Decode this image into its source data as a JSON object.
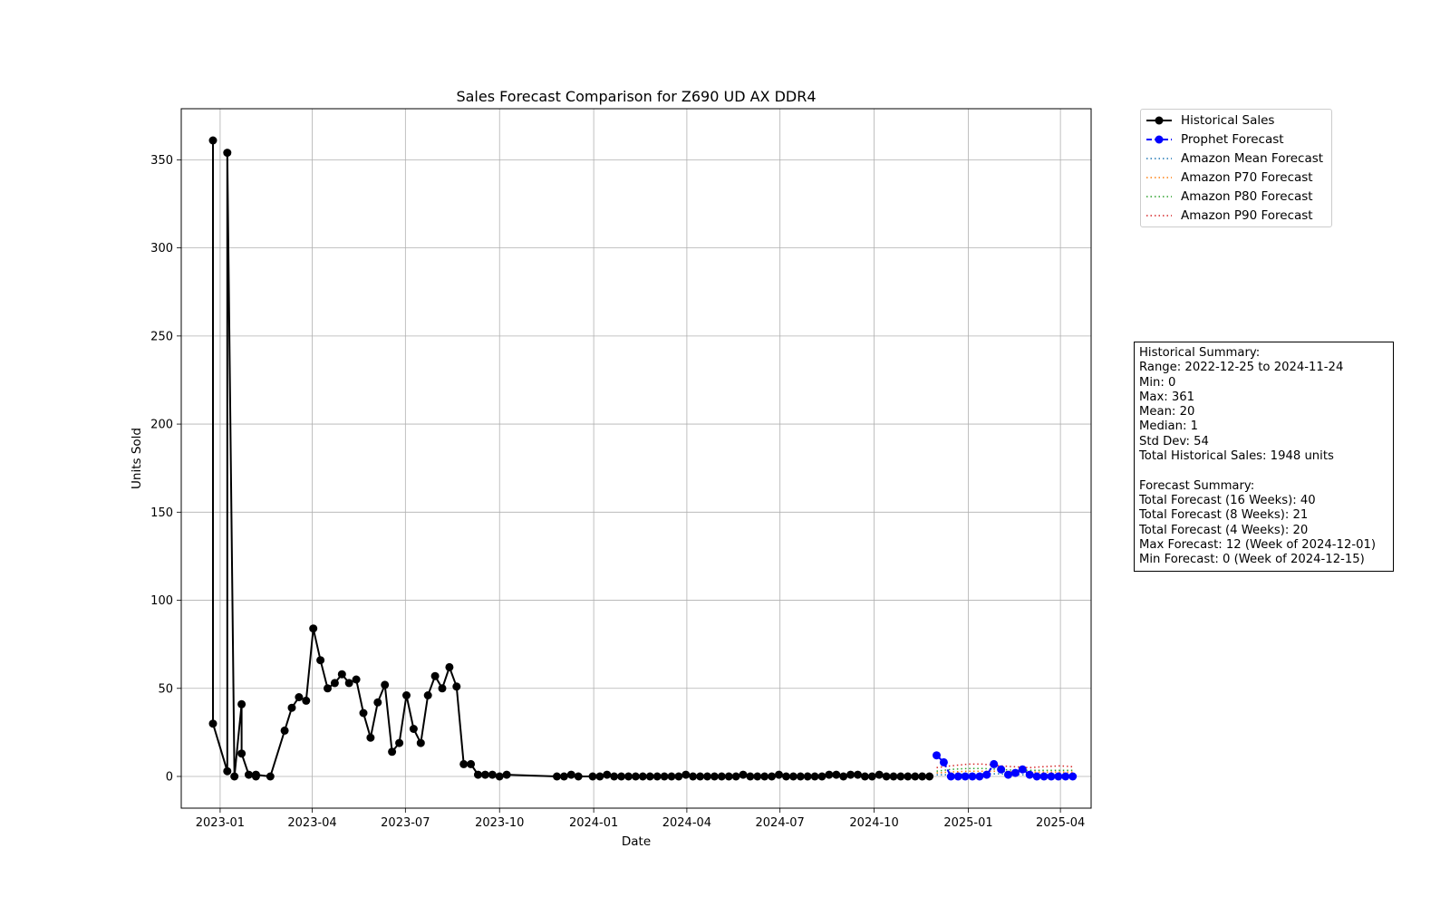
{
  "chart_data": {
    "type": "line",
    "title": "Sales Forecast Comparison for Z690 UD AX DDR4",
    "xlabel": "Date",
    "ylabel": "Units Sold",
    "xlim": [
      "2022-11-24",
      "2025-05-01"
    ],
    "ylim": [
      -18,
      379
    ],
    "x_ticks": [
      "2023-01",
      "2023-04",
      "2023-07",
      "2023-10",
      "2024-01",
      "2024-04",
      "2024-07",
      "2024-10",
      "2025-01",
      "2025-04"
    ],
    "y_ticks": [
      0,
      50,
      100,
      150,
      200,
      250,
      300,
      350
    ],
    "grid": true,
    "legend_placement": "outside-top-right",
    "series": [
      {
        "name": "Historical Sales",
        "style": "solid-marker",
        "color": "#000000",
        "points": [
          [
            "2022-12-25",
            361
          ],
          [
            "2022-12-25",
            30
          ],
          [
            "2023-01-08",
            3
          ],
          [
            "2023-01-08",
            354
          ],
          [
            "2023-01-15",
            0
          ],
          [
            "2023-01-22",
            41
          ],
          [
            "2023-01-22",
            13
          ],
          [
            "2023-01-29",
            1
          ],
          [
            "2023-02-05",
            0
          ],
          [
            "2023-02-05",
            1
          ],
          [
            "2023-02-19",
            0
          ],
          [
            "2023-03-05",
            26
          ],
          [
            "2023-03-12",
            39
          ],
          [
            "2023-03-19",
            45
          ],
          [
            "2023-03-26",
            43
          ],
          [
            "2023-04-02",
            84
          ],
          [
            "2023-04-09",
            66
          ],
          [
            "2023-04-16",
            50
          ],
          [
            "2023-04-23",
            53
          ],
          [
            "2023-04-30",
            58
          ],
          [
            "2023-05-07",
            53
          ],
          [
            "2023-05-14",
            55
          ],
          [
            "2023-05-21",
            36
          ],
          [
            "2023-05-28",
            22
          ],
          [
            "2023-06-04",
            42
          ],
          [
            "2023-06-11",
            52
          ],
          [
            "2023-06-18",
            14
          ],
          [
            "2023-06-25",
            19
          ],
          [
            "2023-07-02",
            46
          ],
          [
            "2023-07-09",
            27
          ],
          [
            "2023-07-16",
            19
          ],
          [
            "2023-07-23",
            46
          ],
          [
            "2023-07-30",
            57
          ],
          [
            "2023-08-06",
            50
          ],
          [
            "2023-08-13",
            62
          ],
          [
            "2023-08-20",
            51
          ],
          [
            "2023-08-27",
            7
          ],
          [
            "2023-09-03",
            7
          ],
          [
            "2023-09-10",
            1
          ],
          [
            "2023-09-17",
            1
          ],
          [
            "2023-09-24",
            1
          ],
          [
            "2023-10-01",
            0
          ],
          [
            "2023-10-08",
            1
          ],
          [
            "2023-11-26",
            0
          ],
          [
            "2023-12-03",
            0
          ],
          [
            "2023-12-10",
            1
          ],
          [
            "2023-12-17",
            0
          ],
          [
            "2023-12-31",
            0
          ],
          [
            "2024-01-07",
            0
          ],
          [
            "2024-01-14",
            1
          ],
          [
            "2024-01-21",
            0
          ],
          [
            "2024-01-28",
            0
          ],
          [
            "2024-02-04",
            0
          ],
          [
            "2024-02-11",
            0
          ],
          [
            "2024-02-18",
            0
          ],
          [
            "2024-02-25",
            0
          ],
          [
            "2024-03-03",
            0
          ],
          [
            "2024-03-10",
            0
          ],
          [
            "2024-03-17",
            0
          ],
          [
            "2024-03-24",
            0
          ],
          [
            "2024-03-31",
            1
          ],
          [
            "2024-04-07",
            0
          ],
          [
            "2024-04-14",
            0
          ],
          [
            "2024-04-21",
            0
          ],
          [
            "2024-04-28",
            0
          ],
          [
            "2024-05-05",
            0
          ],
          [
            "2024-05-12",
            0
          ],
          [
            "2024-05-19",
            0
          ],
          [
            "2024-05-26",
            1
          ],
          [
            "2024-06-02",
            0
          ],
          [
            "2024-06-09",
            0
          ],
          [
            "2024-06-16",
            0
          ],
          [
            "2024-06-23",
            0
          ],
          [
            "2024-06-30",
            1
          ],
          [
            "2024-07-07",
            0
          ],
          [
            "2024-07-14",
            0
          ],
          [
            "2024-07-21",
            0
          ],
          [
            "2024-07-28",
            0
          ],
          [
            "2024-08-04",
            0
          ],
          [
            "2024-08-11",
            0
          ],
          [
            "2024-08-18",
            1
          ],
          [
            "2024-08-25",
            1
          ],
          [
            "2024-09-01",
            0
          ],
          [
            "2024-09-08",
            1
          ],
          [
            "2024-09-15",
            1
          ],
          [
            "2024-09-22",
            0
          ],
          [
            "2024-09-29",
            0
          ],
          [
            "2024-10-06",
            1
          ],
          [
            "2024-10-13",
            0
          ],
          [
            "2024-10-20",
            0
          ],
          [
            "2024-10-27",
            0
          ],
          [
            "2024-11-03",
            0
          ],
          [
            "2024-11-10",
            0
          ],
          [
            "2024-11-17",
            0
          ],
          [
            "2024-11-24",
            0
          ]
        ]
      },
      {
        "name": "Prophet Forecast",
        "style": "dashed-marker",
        "color": "#0000ff",
        "points": [
          [
            "2024-12-01",
            12
          ],
          [
            "2024-12-08",
            8
          ],
          [
            "2024-12-15",
            0
          ],
          [
            "2024-12-22",
            0
          ],
          [
            "2024-12-29",
            0
          ],
          [
            "2025-01-05",
            0
          ],
          [
            "2025-01-12",
            0
          ],
          [
            "2025-01-19",
            1
          ],
          [
            "2025-01-26",
            7
          ],
          [
            "2025-02-02",
            4
          ],
          [
            "2025-02-09",
            1
          ],
          [
            "2025-02-16",
            2
          ],
          [
            "2025-02-23",
            4
          ],
          [
            "2025-03-02",
            1
          ],
          [
            "2025-03-09",
            0
          ],
          [
            "2025-03-16",
            0
          ],
          [
            "2025-03-23",
            0
          ],
          [
            "2025-03-30",
            0
          ],
          [
            "2025-04-06",
            0
          ],
          [
            "2025-04-13",
            0
          ]
        ]
      },
      {
        "name": "Amazon Mean Forecast",
        "style": "dotted",
        "color": "#1f77b4",
        "points": [
          [
            "2024-12-01",
            1
          ],
          [
            "2024-12-15",
            1
          ],
          [
            "2025-01-01",
            1.5
          ],
          [
            "2025-01-15",
            1.5
          ],
          [
            "2025-02-01",
            1.5
          ],
          [
            "2025-02-15",
            1
          ],
          [
            "2025-03-01",
            1
          ],
          [
            "2025-03-15",
            1
          ],
          [
            "2025-04-01",
            1
          ],
          [
            "2025-04-13",
            1
          ]
        ]
      },
      {
        "name": "Amazon P70 Forecast",
        "style": "dotted",
        "color": "#ff7f0e",
        "points": [
          [
            "2024-12-01",
            2
          ],
          [
            "2024-12-15",
            2.5
          ],
          [
            "2025-01-01",
            3
          ],
          [
            "2025-01-15",
            3
          ],
          [
            "2025-02-01",
            3
          ],
          [
            "2025-02-15",
            2.5
          ],
          [
            "2025-03-01",
            2.5
          ],
          [
            "2025-03-15",
            2.5
          ],
          [
            "2025-04-01",
            2.5
          ],
          [
            "2025-04-13",
            2.5
          ]
        ]
      },
      {
        "name": "Amazon P80 Forecast",
        "style": "dotted",
        "color": "#2ca02c",
        "points": [
          [
            "2024-12-01",
            3
          ],
          [
            "2024-12-15",
            4
          ],
          [
            "2025-01-01",
            4.5
          ],
          [
            "2025-01-15",
            4.5
          ],
          [
            "2025-02-01",
            4
          ],
          [
            "2025-02-15",
            3.5
          ],
          [
            "2025-03-01",
            3.5
          ],
          [
            "2025-03-15",
            3.5
          ],
          [
            "2025-04-01",
            3.5
          ],
          [
            "2025-04-13",
            3.5
          ]
        ]
      },
      {
        "name": "Amazon P90 Forecast",
        "style": "dotted",
        "color": "#d62728",
        "points": [
          [
            "2024-12-01",
            5
          ],
          [
            "2024-12-15",
            6
          ],
          [
            "2025-01-01",
            7
          ],
          [
            "2025-01-15",
            7
          ],
          [
            "2025-02-01",
            6
          ],
          [
            "2025-02-15",
            5.5
          ],
          [
            "2025-03-01",
            5
          ],
          [
            "2025-03-15",
            5.5
          ],
          [
            "2025-04-01",
            6
          ],
          [
            "2025-04-13",
            5.5
          ]
        ]
      }
    ]
  },
  "summary": {
    "lines": [
      "Historical Summary:",
      "Range: 2022-12-25 to 2024-11-24",
      "Min: 0",
      "Max: 361",
      "Mean: 20",
      "Median: 1",
      "Std Dev: 54",
      "Total Historical Sales: 1948 units",
      "",
      "Forecast Summary:",
      "Total Forecast (16 Weeks): 40",
      "Total Forecast (8 Weeks): 21",
      "Total Forecast (4 Weeks): 20",
      "Max Forecast: 12 (Week of 2024-12-01)",
      "Min Forecast: 0 (Week of 2024-12-15)"
    ]
  }
}
